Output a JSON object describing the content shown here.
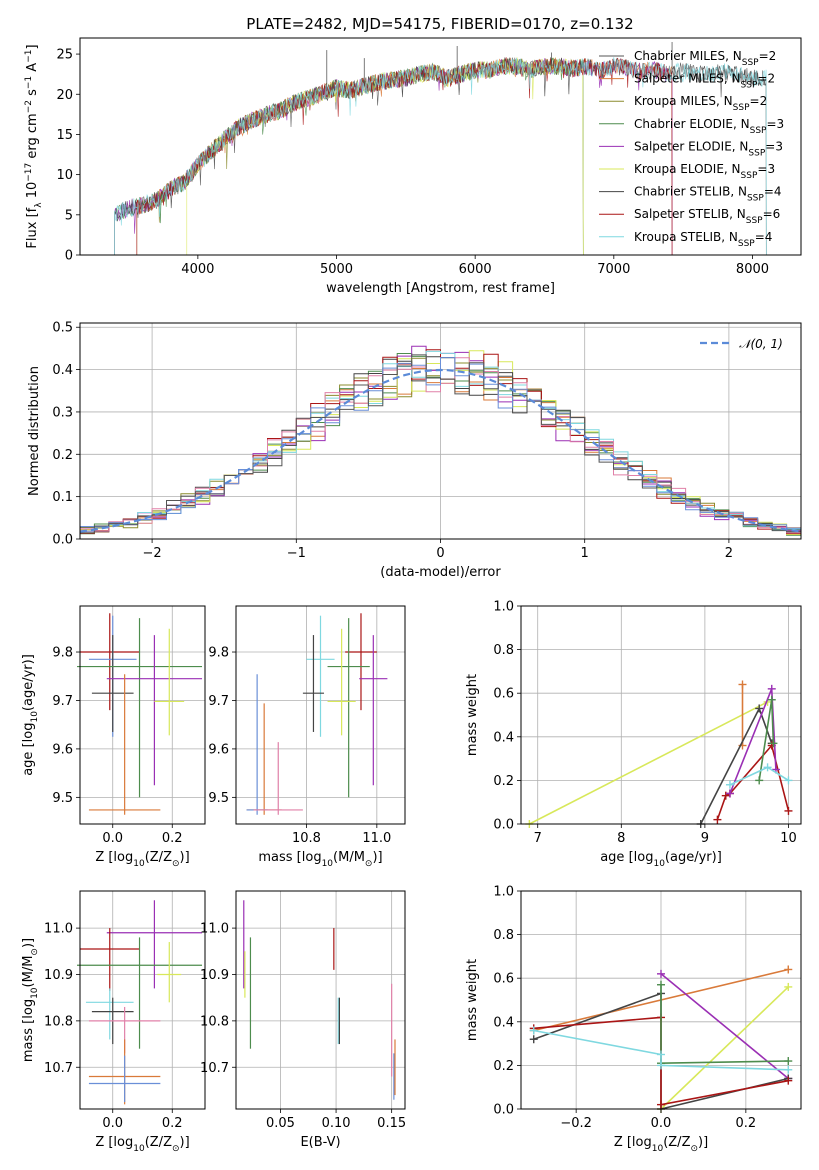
{
  "figure": {
    "title": "PLATE=2482, MJD=54175, FIBERID=0170, z=0.132"
  },
  "colors": {
    "grid": "#b0b0b0",
    "palette": [
      "#555555",
      "#d97a3a",
      "#8b8c2e",
      "#4d8c4d",
      "#9a2fb4",
      "#d8e85a",
      "#444444",
      "#aa1515",
      "#7fd8e0",
      "#e080a8",
      "#6a8fd8"
    ]
  },
  "series_names": [
    "Chabrier MILES, N_SSP=2",
    "Salpeter MILES, N_SSP=2",
    "Kroupa MILES, N_SSP=2",
    "Chabrier ELODIE, N_SSP=3",
    "Salpeter ELODIE, N_SSP=3",
    "Kroupa ELODIE, N_SSP=3",
    "Chabrier STELIB, N_SSP=4",
    "Salpeter STELIB, N_SSP=6",
    "Kroupa STELIB, N_SSP=4"
  ],
  "chart_data": [
    {
      "id": "spectrum",
      "type": "line",
      "xlabel": "wavelength [Angstrom, rest frame]",
      "ylabel": "Flux [f_λ 10^-17 erg cm^-2 s^-1 A^-1]",
      "xlim": [
        3150,
        8350
      ],
      "ylim": [
        0,
        27
      ],
      "xticks": [
        4000,
        5000,
        6000,
        7000,
        8000
      ],
      "yticks": [
        0,
        5,
        10,
        15,
        20,
        25
      ],
      "grid": false,
      "legend": "top-right",
      "continuum": {
        "x": [
          3400,
          3500,
          3600,
          3700,
          3800,
          3900,
          4000,
          4100,
          4200,
          4300,
          4400,
          4500,
          4600,
          4700,
          4800,
          4900,
          5000,
          5100,
          5200,
          5300,
          5400,
          5500,
          5600,
          5700,
          5800,
          5900,
          6000,
          6100,
          6200,
          6300,
          6400,
          6500,
          6600,
          6700,
          6800,
          6900,
          7000,
          7100,
          7200,
          7300,
          7400,
          7500,
          7600,
          7700,
          7800,
          7900,
          8000,
          8100
        ],
        "y": [
          5.0,
          5.8,
          6.2,
          6.8,
          8.2,
          9.0,
          11.2,
          13.0,
          14.5,
          16.0,
          16.8,
          17.5,
          18.0,
          19.0,
          19.5,
          20.2,
          20.8,
          20.5,
          21.0,
          21.5,
          21.8,
          22.0,
          22.5,
          22.8,
          22.0,
          22.5,
          23.0,
          23.0,
          23.5,
          23.5,
          23.0,
          23.5,
          23.5,
          23.2,
          23.5,
          23.0,
          23.5,
          23.2,
          22.8,
          23.0,
          22.5,
          23.0,
          22.5,
          22.5,
          22.8,
          22.5,
          22.0,
          22.0
        ]
      },
      "model_ranges": [
        {
          "series": 0,
          "x": [
            3400,
            8100
          ]
        },
        {
          "series": 1,
          "x": [
            3560,
            7420
          ]
        },
        {
          "series": 2,
          "x": [
            3560,
            6780
          ]
        },
        {
          "series": 3,
          "x": [
            3400,
            6780
          ]
        },
        {
          "series": 4,
          "x": [
            3400,
            7420
          ]
        },
        {
          "series": 5,
          "x": [
            3920,
            6780
          ]
        },
        {
          "series": 6,
          "x": [
            3400,
            8100
          ]
        },
        {
          "series": 7,
          "x": [
            3560,
            7420
          ]
        },
        {
          "series": 8,
          "x": [
            3400,
            8100
          ]
        }
      ]
    },
    {
      "id": "residual-histogram",
      "type": "histogram",
      "xlabel": "(data-model)/error",
      "ylabel": "Normed distribution",
      "xlim": [
        -2.5,
        2.5
      ],
      "ylim": [
        0,
        0.51
      ],
      "xticks": [
        -2,
        -1,
        0,
        1,
        2
      ],
      "xtick_labels": [
        "−2",
        "−1",
        "0",
        "1",
        "2"
      ],
      "yticks": [
        0.0,
        0.1,
        0.2,
        0.3,
        0.4,
        0.5
      ],
      "ytick_labels": [
        "0.0",
        "0.1",
        "0.2",
        "0.3",
        "0.4",
        "0.5"
      ],
      "grid": true,
      "legend": "top-right",
      "reference": {
        "label": "𝒩(0, 1)",
        "mean": 0,
        "sigma": 1,
        "color": "#5b8bd8"
      },
      "bin_width": 0.1
    },
    {
      "id": "age-vs-metallicity",
      "type": "errorbar",
      "xlabel": "Z [log10(Z/Z⊙)]",
      "ylabel": "age  [log10(age/yr)]",
      "xlim": [
        -0.11,
        0.31
      ],
      "ylim": [
        9.445,
        9.895
      ],
      "xticks": [
        0.0,
        0.2
      ],
      "xtick_labels": [
        "0.0",
        "0.2"
      ],
      "yticks": [
        9.5,
        9.6,
        9.7,
        9.8
      ],
      "ytick_labels": [
        "9.5",
        "9.6",
        "9.7",
        "9.8"
      ],
      "grid": true,
      "points": [
        {
          "series": 7,
          "x": -0.01,
          "xerr": 0.1,
          "y": 9.8,
          "yerr": [
            0.12,
            0.08
          ]
        },
        {
          "series": 10,
          "x": 0.0,
          "xerr": 0.08,
          "y": 9.785,
          "yerr": [
            0.16,
            0.09
          ]
        },
        {
          "series": 6,
          "x": 0.0,
          "xerr": 0.07,
          "y": 9.715,
          "yerr": [
            0.08,
            0.12
          ]
        },
        {
          "series": 3,
          "x": 0.09,
          "xerr": 0.21,
          "y": 9.77,
          "yerr": [
            0.27,
            0.1
          ]
        },
        {
          "series": 4,
          "x": 0.14,
          "xerr": 0.16,
          "y": 9.745,
          "yerr": [
            0.22,
            0.09
          ]
        },
        {
          "series": 5,
          "x": 0.19,
          "xerr": 0.05,
          "y": 9.698,
          "yerr": [
            0.07,
            0.15
          ]
        },
        {
          "series": 1,
          "x": 0.04,
          "xerr": 0.12,
          "y": 9.474,
          "yerr": [
            0.01,
            0.28
          ]
        }
      ]
    },
    {
      "id": "age-vs-mass",
      "type": "errorbar",
      "xlabel": "mass [log10(M/M⊙)]",
      "ylabel": "",
      "xlim": [
        10.6,
        11.08
      ],
      "ylim": [
        9.445,
        9.895
      ],
      "xticks": [
        10.8,
        11.0
      ],
      "xtick_labels": [
        "10.8",
        "11.0"
      ],
      "yticks": [
        9.5,
        9.6,
        9.7,
        9.8
      ],
      "ytick_labels": [
        "9.5",
        "9.6",
        "9.7",
        "9.8"
      ],
      "grid": true,
      "points": [
        {
          "series": 7,
          "x": 10.955,
          "xerr": 0.045,
          "y": 9.8,
          "yerr": [
            0.12,
            0.08
          ]
        },
        {
          "series": 8,
          "x": 10.84,
          "xerr": 0.04,
          "y": 9.785,
          "yerr": [
            0.16,
            0.09
          ]
        },
        {
          "series": 6,
          "x": 10.82,
          "xerr": 0.03,
          "y": 9.715,
          "yerr": [
            0.08,
            0.12
          ]
        },
        {
          "series": 3,
          "x": 10.92,
          "xerr": 0.06,
          "y": 9.77,
          "yerr": [
            0.27,
            0.1
          ]
        },
        {
          "series": 4,
          "x": 10.99,
          "xerr": 0.04,
          "y": 9.745,
          "yerr": [
            0.22,
            0.09
          ]
        },
        {
          "series": 5,
          "x": 10.9,
          "xerr": 0.04,
          "y": 9.698,
          "yerr": [
            0.07,
            0.15
          ]
        },
        {
          "series": 1,
          "x": 10.68,
          "xerr": 0.05,
          "y": 9.474,
          "yerr": [
            0.01,
            0.22
          ]
        },
        {
          "series": 10,
          "x": 10.66,
          "xerr": 0.03,
          "y": 9.474,
          "yerr": [
            0.01,
            0.28
          ]
        },
        {
          "series": 9,
          "x": 10.72,
          "xerr": 0.07,
          "y": 9.474,
          "yerr": [
            0.01,
            0.14
          ]
        }
      ]
    },
    {
      "id": "mass-weight-vs-age",
      "type": "line",
      "xlabel": "age  [log10(age/yr)]",
      "ylabel": "mass weight",
      "xlim": [
        6.8,
        10.15
      ],
      "ylim": [
        0,
        1.0
      ],
      "xticks": [
        7,
        8,
        9,
        10
      ],
      "xtick_labels": [
        "7",
        "8",
        "9",
        "10"
      ],
      "yticks": [
        0.0,
        0.2,
        0.4,
        0.6,
        0.8,
        1.0
      ],
      "ytick_labels": [
        "0.0",
        "0.2",
        "0.4",
        "0.6",
        "0.8",
        "1.0"
      ],
      "grid": true,
      "series_lines": [
        {
          "series": 5,
          "x": [
            6.9,
            9.75
          ],
          "y": [
            0.0,
            0.56
          ]
        },
        {
          "series": 1,
          "x": [
            9.45,
            9.45
          ],
          "y": [
            0.36,
            0.64
          ]
        },
        {
          "series": 6,
          "x": [
            8.95,
            9.65,
            9.8
          ],
          "y": [
            0.0,
            0.53,
            0.37
          ]
        },
        {
          "series": 7,
          "x": [
            9.15,
            9.25,
            9.3,
            9.8,
            10.0
          ],
          "y": [
            0.02,
            0.13,
            0.14,
            0.36,
            0.06
          ]
        },
        {
          "series": 4,
          "x": [
            9.3,
            9.8,
            9.85
          ],
          "y": [
            0.14,
            0.62,
            0.25
          ]
        },
        {
          "series": 3,
          "x": [
            9.65,
            9.8,
            9.82
          ],
          "y": [
            0.2,
            0.57,
            0.37
          ]
        },
        {
          "series": 8,
          "x": [
            9.3,
            9.75,
            10.0
          ],
          "y": [
            0.18,
            0.26,
            0.2
          ]
        }
      ]
    },
    {
      "id": "mass-vs-metallicity",
      "type": "errorbar",
      "xlabel": "Z [log10(Z/Z⊙)]",
      "ylabel": "mass [log10(M/M⊙)]",
      "xlim": [
        -0.11,
        0.31
      ],
      "ylim": [
        10.61,
        11.08
      ],
      "xticks": [
        0.0,
        0.2
      ],
      "xtick_labels": [
        "0.0",
        "0.2"
      ],
      "yticks": [
        10.7,
        10.8,
        10.9,
        11.0
      ],
      "ytick_labels": [
        "10.7",
        "10.8",
        "10.9",
        "11.0"
      ],
      "grid": true,
      "points": [
        {
          "series": 4,
          "x": 0.14,
          "xerr": 0.16,
          "y": 10.99,
          "yerr": [
            0.12,
            0.07
          ]
        },
        {
          "series": 7,
          "x": -0.01,
          "xerr": 0.1,
          "y": 10.955,
          "yerr": [
            0.09,
            0.045
          ]
        },
        {
          "series": 3,
          "x": 0.09,
          "xerr": 0.21,
          "y": 10.92,
          "yerr": [
            0.18,
            0.06
          ]
        },
        {
          "series": 5,
          "x": 0.19,
          "xerr": 0.04,
          "y": 10.9,
          "yerr": [
            0.06,
            0.07
          ]
        },
        {
          "series": 8,
          "x": -0.01,
          "xerr": 0.08,
          "y": 10.84,
          "yerr": [
            0.08,
            0.03
          ]
        },
        {
          "series": 6,
          "x": 0.0,
          "xerr": 0.07,
          "y": 10.82,
          "yerr": [
            0.07,
            0.03
          ]
        },
        {
          "series": 9,
          "x": 0.04,
          "xerr": 0.12,
          "y": 10.8,
          "yerr": [
            0.07,
            0.03
          ]
        },
        {
          "series": 1,
          "x": 0.04,
          "xerr": 0.12,
          "y": 10.68,
          "yerr": [
            0.06,
            0.08
          ]
        },
        {
          "series": 10,
          "x": 0.04,
          "xerr": 0.12,
          "y": 10.665,
          "yerr": [
            0.04,
            0.06
          ]
        }
      ]
    },
    {
      "id": "mass-vs-extinction",
      "type": "errorbar",
      "xlabel": "E(B-V)",
      "ylabel": "",
      "xlim": [
        0.01,
        0.162
      ],
      "ylim": [
        10.61,
        11.08
      ],
      "xticks": [
        0.05,
        0.1,
        0.15
      ],
      "xtick_labels": [
        "0.05",
        "0.10",
        "0.15"
      ],
      "yticks": [
        10.7,
        10.8,
        10.9,
        11.0
      ],
      "ytick_labels": [
        "10.7",
        "10.8",
        "10.9",
        "11.0"
      ],
      "grid": true,
      "points": [
        {
          "series": 4,
          "x": 0.017,
          "y": 10.99,
          "yerr": [
            0.12,
            0.07
          ]
        },
        {
          "series": 5,
          "x": 0.018,
          "y": 10.9,
          "yerr": [
            0.05,
            0.05
          ]
        },
        {
          "series": 3,
          "x": 0.023,
          "y": 10.86,
          "yerr": [
            0.12,
            0.12
          ]
        },
        {
          "series": 7,
          "x": 0.098,
          "y": 10.955,
          "yerr": [
            0.045,
            0.045
          ]
        },
        {
          "series": 8,
          "x": 0.102,
          "y": 10.8,
          "yerr": [
            0.05,
            0.05
          ]
        },
        {
          "series": 6,
          "x": 0.103,
          "y": 10.8,
          "yerr": [
            0.05,
            0.05
          ]
        },
        {
          "series": 9,
          "x": 0.15,
          "y": 10.78,
          "yerr": [
            0.1,
            0.1
          ]
        },
        {
          "series": 10,
          "x": 0.152,
          "y": 10.68,
          "yerr": [
            0.05,
            0.05
          ]
        },
        {
          "series": 1,
          "x": 0.153,
          "y": 10.7,
          "yerr": [
            0.06,
            0.06
          ]
        }
      ]
    },
    {
      "id": "mass-weight-vs-metallicity",
      "type": "line",
      "xlabel": "Z [log10(Z/Z⊙)]",
      "ylabel": "mass weight",
      "xlim": [
        -0.33,
        0.33
      ],
      "ylim": [
        0,
        1.0
      ],
      "xticks": [
        -0.2,
        0.0,
        0.2
      ],
      "xtick_labels": [
        "−0.2",
        "0.0",
        "0.2"
      ],
      "yticks": [
        0.0,
        0.2,
        0.4,
        0.6,
        0.8,
        1.0
      ],
      "ytick_labels": [
        "0.0",
        "0.2",
        "0.4",
        "0.6",
        "0.8",
        "1.0"
      ],
      "grid": true,
      "series_lines": [
        {
          "series": 1,
          "x": [
            -0.3,
            0.3
          ],
          "y": [
            0.36,
            0.64
          ]
        },
        {
          "series": 5,
          "x": [
            0.0,
            0.3
          ],
          "y": [
            0.0,
            0.56
          ]
        },
        {
          "series": 4,
          "x": [
            0.0,
            0.3
          ],
          "y": [
            0.62,
            0.14
          ]
        },
        {
          "series": 6,
          "x": [
            -0.3,
            0.0,
            0.0,
            0.3
          ],
          "y": [
            0.32,
            0.53,
            0.0,
            0.14
          ]
        },
        {
          "series": 7,
          "x": [
            -0.3,
            0.0,
            0.0,
            0.3
          ],
          "y": [
            0.37,
            0.42,
            0.02,
            0.13
          ]
        },
        {
          "series": 3,
          "x": [
            0.0,
            0.0,
            0.3
          ],
          "y": [
            0.57,
            0.21,
            0.22
          ]
        },
        {
          "series": 8,
          "x": [
            -0.3,
            0.0,
            0.0,
            0.3
          ],
          "y": [
            0.36,
            0.25,
            0.2,
            0.18
          ]
        }
      ]
    }
  ]
}
